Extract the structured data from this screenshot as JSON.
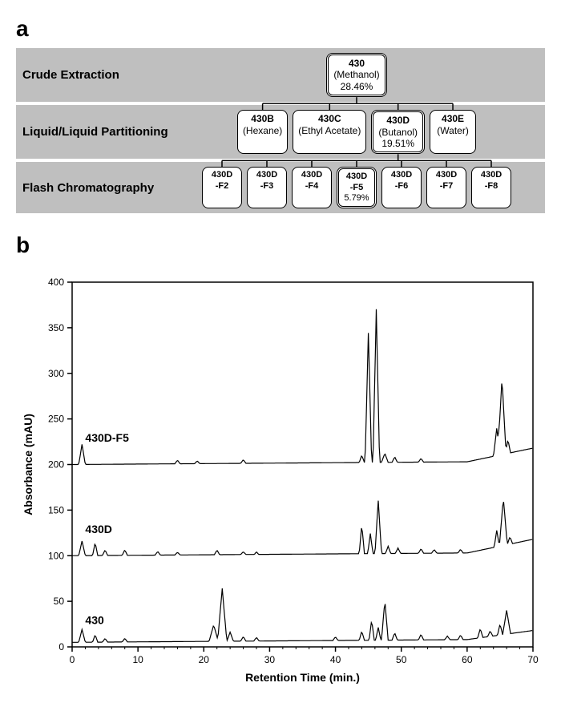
{
  "panel_a": {
    "label": "a",
    "stages": [
      {
        "name": "Crude Extraction",
        "nodes": [
          {
            "id": "430",
            "title": "430",
            "sub": "(Methanol)",
            "pct": "28.46%",
            "highlight": true
          }
        ]
      },
      {
        "name": "Liquid/Liquid Partitioning",
        "nodes": [
          {
            "id": "430B",
            "title": "430B",
            "sub": "(Hexane)",
            "highlight": false
          },
          {
            "id": "430C",
            "title": "430C",
            "sub": "(Ethyl Acetate)",
            "highlight": false
          },
          {
            "id": "430D",
            "title": "430D",
            "sub": "(Butanol)",
            "pct": "19.51%",
            "highlight": true
          },
          {
            "id": "430E",
            "title": "430E",
            "sub": "(Water)",
            "highlight": false
          }
        ]
      },
      {
        "name": "Flash Chromatography",
        "nodes": [
          {
            "id": "430D-F2",
            "title": "430D\n-F2",
            "highlight": false
          },
          {
            "id": "430D-F3",
            "title": "430D\n-F3",
            "highlight": false
          },
          {
            "id": "430D-F4",
            "title": "430D\n-F4",
            "highlight": false
          },
          {
            "id": "430D-F5",
            "title": "430D\n-F5",
            "pct": "5.79%",
            "highlight": true
          },
          {
            "id": "430D-F6",
            "title": "430D\n-F6",
            "highlight": false
          },
          {
            "id": "430D-F7",
            "title": "430D\n-F7",
            "highlight": false
          },
          {
            "id": "430D-F8",
            "title": "430D\n-F8",
            "highlight": false
          }
        ]
      }
    ],
    "stage_bg": "#bfbfbf",
    "node_bg": "#ffffff",
    "border_color": "#000000"
  },
  "panel_b": {
    "label": "b",
    "x_label": "Retention Time (min.)",
    "y_label": "Absorbance (mAU)",
    "xlim": [
      0,
      70
    ],
    "ylim": [
      0,
      400
    ],
    "xtick_step": 10,
    "ytick_step": 50,
    "background": "#ffffff",
    "axis_color": "#000000",
    "tick_fontsize": 12,
    "label_fontsize": 14,
    "label_fontweight": "bold",
    "line_color": "#000000",
    "line_width": 1.2,
    "traces": [
      {
        "name": "430D-F5",
        "baseline": 200,
        "label_x": 2,
        "label_y": 225,
        "drift": [
          [
            0,
            0
          ],
          [
            60,
            3
          ],
          [
            70,
            18
          ]
        ],
        "peaks": [
          {
            "x": 1.5,
            "h": 22,
            "w": 0.5
          },
          {
            "x": 16,
            "h": 4,
            "w": 0.4
          },
          {
            "x": 19,
            "h": 3,
            "w": 0.4
          },
          {
            "x": 26,
            "h": 4,
            "w": 0.4
          },
          {
            "x": 44,
            "h": 8,
            "w": 0.4
          },
          {
            "x": 45,
            "h": 142,
            "w": 0.5
          },
          {
            "x": 46.2,
            "h": 168,
            "w": 0.5
          },
          {
            "x": 47.5,
            "h": 10,
            "w": 0.5
          },
          {
            "x": 49,
            "h": 6,
            "w": 0.4
          },
          {
            "x": 53,
            "h": 4,
            "w": 0.4
          },
          {
            "x": 64.5,
            "h": 30,
            "w": 0.5
          },
          {
            "x": 65.3,
            "h": 85,
            "w": 0.6
          },
          {
            "x": 66.2,
            "h": 15,
            "w": 0.4
          }
        ]
      },
      {
        "name": "430D",
        "baseline": 100,
        "label_x": 2,
        "label_y": 125,
        "drift": [
          [
            0,
            0
          ],
          [
            60,
            3
          ],
          [
            70,
            18
          ]
        ],
        "peaks": [
          {
            "x": 1.5,
            "h": 16,
            "w": 0.5
          },
          {
            "x": 3.5,
            "h": 14,
            "w": 0.4
          },
          {
            "x": 5,
            "h": 6,
            "w": 0.4
          },
          {
            "x": 8,
            "h": 6,
            "w": 0.4
          },
          {
            "x": 13,
            "h": 4,
            "w": 0.4
          },
          {
            "x": 16,
            "h": 3,
            "w": 0.4
          },
          {
            "x": 22,
            "h": 5,
            "w": 0.4
          },
          {
            "x": 26,
            "h": 3,
            "w": 0.4
          },
          {
            "x": 28,
            "h": 3,
            "w": 0.3
          },
          {
            "x": 44,
            "h": 32,
            "w": 0.4
          },
          {
            "x": 45.3,
            "h": 22,
            "w": 0.4
          },
          {
            "x": 46.5,
            "h": 58,
            "w": 0.5
          },
          {
            "x": 48,
            "h": 8,
            "w": 0.4
          },
          {
            "x": 49.5,
            "h": 6,
            "w": 0.4
          },
          {
            "x": 53,
            "h": 5,
            "w": 0.4
          },
          {
            "x": 55,
            "h": 4,
            "w": 0.4
          },
          {
            "x": 59,
            "h": 4,
            "w": 0.4
          },
          {
            "x": 64.5,
            "h": 18,
            "w": 0.4
          },
          {
            "x": 65.5,
            "h": 52,
            "w": 0.6
          },
          {
            "x": 66.5,
            "h": 8,
            "w": 0.4
          }
        ]
      },
      {
        "name": "430",
        "baseline": 0,
        "label_x": 2,
        "label_y": 25,
        "drift": [
          [
            0,
            5
          ],
          [
            60,
            8
          ],
          [
            70,
            18
          ]
        ],
        "peaks": [
          {
            "x": 1.5,
            "h": 14,
            "w": 0.5
          },
          {
            "x": 3.5,
            "h": 8,
            "w": 0.4
          },
          {
            "x": 5,
            "h": 4,
            "w": 0.4
          },
          {
            "x": 8,
            "h": 4,
            "w": 0.4
          },
          {
            "x": 21.5,
            "h": 18,
            "w": 0.7
          },
          {
            "x": 22.8,
            "h": 58,
            "w": 0.7
          },
          {
            "x": 24,
            "h": 10,
            "w": 0.5
          },
          {
            "x": 26,
            "h": 5,
            "w": 0.4
          },
          {
            "x": 28,
            "h": 4,
            "w": 0.4
          },
          {
            "x": 40,
            "h": 4,
            "w": 0.4
          },
          {
            "x": 44,
            "h": 10,
            "w": 0.4
          },
          {
            "x": 45.5,
            "h": 22,
            "w": 0.4
          },
          {
            "x": 46.5,
            "h": 14,
            "w": 0.4
          },
          {
            "x": 47.5,
            "h": 44,
            "w": 0.5
          },
          {
            "x": 49,
            "h": 8,
            "w": 0.4
          },
          {
            "x": 53,
            "h": 6,
            "w": 0.4
          },
          {
            "x": 57,
            "h": 4,
            "w": 0.4
          },
          {
            "x": 59,
            "h": 5,
            "w": 0.4
          },
          {
            "x": 62,
            "h": 10,
            "w": 0.4
          },
          {
            "x": 63.5,
            "h": 6,
            "w": 0.4
          },
          {
            "x": 65,
            "h": 12,
            "w": 0.4
          },
          {
            "x": 66,
            "h": 26,
            "w": 0.6
          }
        ]
      }
    ]
  }
}
